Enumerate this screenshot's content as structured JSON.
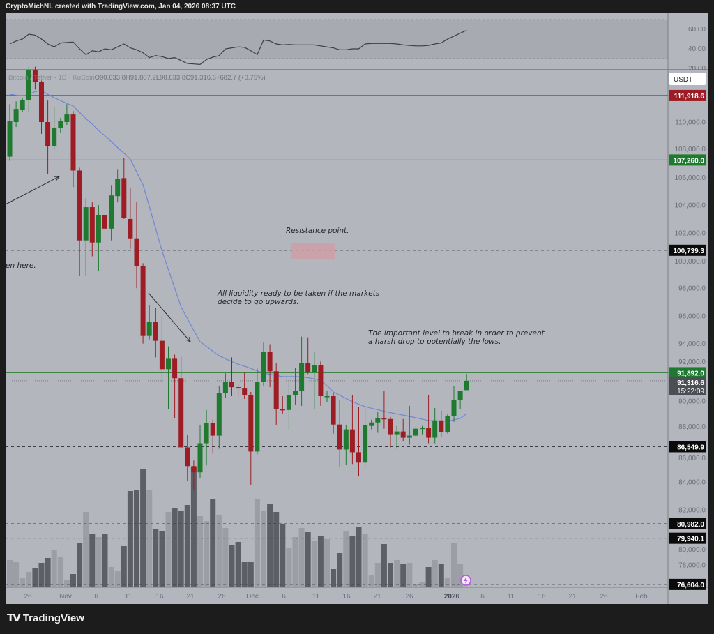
{
  "header": {
    "attribution": "CryptoMichNL created with TradingView.com, Jan 04, 2026 08:37 UTC"
  },
  "legend": {
    "symbol": "Bitcoin / Tether",
    "interval": "1D",
    "exchange": "KuCoin",
    "open": "O90,633.8",
    "high": "H91,807.2",
    "low": "L90,633.8",
    "close": "C91,316.6",
    "change": "+682.7 (+0.75%)"
  },
  "footer": {
    "brand": "TradingView",
    "logo_text": "TV"
  },
  "chart_data": {
    "type": "candlestick",
    "title": "",
    "x_tick_labels": [
      "26",
      "Nov",
      "6",
      "11",
      "16",
      "21",
      "26",
      "Dec",
      "6",
      "11",
      "16",
      "21",
      "26",
      "2026",
      "6",
      "11",
      "16",
      "21",
      "26",
      "Feb"
    ],
    "y_axis": {
      "currency": "USDT",
      "range": [
        76500,
        113780
      ],
      "ticks": [
        110000,
        108000,
        106000,
        104000,
        102000,
        100000,
        98000,
        96000,
        94000,
        92000,
        90000,
        88000,
        86000,
        84000,
        82000,
        80000,
        78000
      ],
      "tick_labels": [
        "110,000.0",
        "108,000.0",
        "106,000.0",
        "104,000.0",
        "102,000.0",
        "100,000.0",
        "98,000.0",
        "96,000.0",
        "94,000.0",
        "92,000.0",
        "90,000.0",
        "88,000.0",
        "86,000.0",
        "84,000.0",
        "82,000.0",
        "80,000.0",
        "78,000.0"
      ]
    },
    "candles": [
      [
        107500,
        111300,
        107200,
        110050
      ],
      [
        110000,
        111500,
        109650,
        110950
      ],
      [
        110900,
        111750,
        110750,
        111600
      ],
      [
        111600,
        114000,
        110750,
        113780
      ],
      [
        113780,
        114000,
        112350,
        112870
      ],
      [
        112870,
        113000,
        109150,
        110000
      ],
      [
        110000,
        111550,
        106250,
        108250
      ],
      [
        108250,
        111100,
        108000,
        109600
      ],
      [
        109550,
        110300,
        109250,
        110050
      ],
      [
        110000,
        111300,
        109800,
        110550
      ],
      [
        110550,
        110800,
        105300,
        106500
      ],
      [
        106500,
        106700,
        98900,
        101450
      ],
      [
        101450,
        104500,
        98900,
        103850
      ],
      [
        103850,
        104200,
        100300,
        101300
      ],
      [
        101300,
        104000,
        99250,
        103300
      ],
      [
        103300,
        103500,
        101450,
        102300
      ],
      [
        102300,
        105450,
        101450,
        104700
      ],
      [
        104650,
        106550,
        104200,
        105900
      ],
      [
        105950,
        107400,
        103000,
        103050
      ],
      [
        103000,
        105250,
        100850,
        101600
      ],
      [
        101600,
        104200,
        98000,
        99600
      ],
      [
        99600,
        99800,
        94000,
        94550
      ],
      [
        94550,
        96750,
        94300,
        95550
      ],
      [
        95550,
        96550,
        93000,
        94200
      ],
      [
        94200,
        96000,
        91250,
        92150
      ],
      [
        92150,
        93800,
        89250,
        92900
      ],
      [
        92900,
        93200,
        88600,
        91500
      ],
      [
        91500,
        93050,
        86500,
        86500
      ],
      [
        86500,
        87400,
        84050,
        85150
      ],
      [
        85150,
        85550,
        83450,
        84700
      ],
      [
        84700,
        88100,
        84300,
        86800
      ],
      [
        86800,
        89200,
        85200,
        88250
      ],
      [
        88250,
        88500,
        86050,
        87350
      ],
      [
        87350,
        90950,
        86400,
        90450
      ],
      [
        90450,
        91850,
        90100,
        91250
      ],
      [
        91250,
        93000,
        90200,
        90850
      ],
      [
        90850,
        91100,
        90150,
        90750
      ],
      [
        90750,
        91900,
        90000,
        90300
      ],
      [
        90300,
        90500,
        83800,
        86200
      ],
      [
        86200,
        92200,
        86000,
        91250
      ],
      [
        91250,
        94100,
        90900,
        93400
      ],
      [
        93400,
        93950,
        90850,
        92000
      ],
      [
        92000,
        92600,
        88100,
        89250
      ],
      [
        89250,
        90200,
        88950,
        89200
      ],
      [
        89200,
        91200,
        87750,
        90300
      ],
      [
        90300,
        92250,
        89600,
        90600
      ],
      [
        90600,
        94500,
        89500,
        92600
      ],
      [
        92600,
        94450,
        91800,
        91950
      ],
      [
        91950,
        93400,
        89250,
        92450
      ],
      [
        92450,
        92700,
        89500,
        90200
      ],
      [
        90200,
        90600,
        89750,
        90200
      ],
      [
        90200,
        90400,
        87500,
        88150
      ],
      [
        88150,
        89950,
        85100,
        86350
      ],
      [
        86350,
        88100,
        85250,
        87800
      ],
      [
        87800,
        90250,
        85300,
        86150
      ],
      [
        86150,
        89400,
        84400,
        85400
      ],
      [
        85400,
        89350,
        85100,
        88100
      ],
      [
        88050,
        88500,
        87800,
        88300
      ],
      [
        88300,
        89050,
        87550,
        88600
      ],
      [
        88600,
        90550,
        87850,
        88550
      ],
      [
        88550,
        88700,
        86500,
        87450
      ],
      [
        87450,
        88050,
        86400,
        87650
      ],
      [
        87650,
        88550,
        86950,
        87200
      ],
      [
        87200,
        89500,
        86700,
        87350
      ],
      [
        87350,
        88000,
        87250,
        87850
      ],
      [
        87850,
        88050,
        87450,
        87900
      ],
      [
        87900,
        90300,
        86800,
        87200
      ],
      [
        87200,
        89350,
        86800,
        88450
      ],
      [
        88450,
        89150,
        87250,
        87600
      ],
      [
        87600,
        88900,
        87500,
        88750
      ],
      [
        88750,
        90950,
        88350,
        89950
      ],
      [
        89950,
        90600,
        89250,
        90600
      ],
      [
        90633.8,
        91807.2,
        90633.8,
        91316.6
      ]
    ],
    "volume_relative": [
      39,
      36,
      13,
      22,
      28,
      35,
      42,
      53,
      43,
      11,
      19,
      63,
      108,
      77,
      72,
      77,
      29,
      24,
      59,
      138,
      139,
      170,
      139,
      84,
      81,
      108,
      113,
      110,
      118,
      172,
      102,
      95,
      126,
      104,
      85,
      61,
      65,
      36,
      36,
      126,
      110,
      120,
      108,
      91,
      56,
      72,
      85,
      79,
      67,
      74,
      69,
      26,
      49,
      80,
      73,
      87,
      76,
      18,
      35,
      62,
      35,
      39,
      33,
      35,
      5,
      8,
      29,
      39,
      33,
      14,
      63,
      34,
      0
    ],
    "moving_average": [
      112000,
      111950,
      111900,
      112000,
      112200,
      112270,
      112000,
      111760,
      111550,
      111350,
      111160,
      110700,
      110250,
      109850,
      109400,
      109000,
      108600,
      108150,
      107750,
      107330,
      106400,
      105470,
      103900,
      102300,
      100680,
      99350,
      98000,
      96650,
      95800,
      94950,
      94130,
      93800,
      93450,
      93120,
      92900,
      92700,
      92500,
      92370,
      92200,
      92030,
      91860,
      91780,
      91700,
      91610,
      91610,
      91610,
      91610,
      91530,
      91450,
      91360,
      90950,
      90500,
      90270,
      90030,
      89800,
      89620,
      89450,
      89330,
      89220,
      89100,
      89010,
      88920,
      88830,
      88740,
      88640,
      88540,
      88440,
      88420,
      88400,
      88390,
      88490,
      88590,
      88940
    ],
    "rsi": {
      "range": [
        20,
        77
      ],
      "bands": [
        70,
        30
      ],
      "ticks": [
        60,
        40,
        20
      ],
      "tick_labels": [
        "60.00",
        "40.00",
        "20.00"
      ],
      "values": [
        45,
        48,
        50,
        55,
        54,
        50,
        45,
        42,
        46,
        46.5,
        47,
        40,
        34,
        38,
        37,
        40,
        39,
        42,
        45,
        41,
        39,
        36,
        31,
        33,
        32,
        30,
        31,
        28,
        25,
        24.5,
        24,
        29,
        31.5,
        33,
        40,
        41,
        42,
        41.5,
        38,
        34,
        49,
        48,
        45,
        44,
        44.5,
        44,
        44,
        44,
        44,
        43,
        42,
        41,
        39,
        39,
        40,
        40,
        45,
        45.5,
        45.5,
        45.5,
        45.5,
        45,
        44,
        43.5,
        43,
        43,
        43.5,
        45,
        46,
        50,
        53,
        56,
        59
      ]
    },
    "horizontal_levels": [
      {
        "value": 111918.6,
        "label": "111,918.6",
        "style": "solid",
        "line_color": "#9b2a30",
        "tag_color": "#9c1b24"
      },
      {
        "value": 107260.0,
        "label": "107,260.0",
        "style": "solid",
        "line_color": "#5d6168",
        "tag_color": "#1f7a30"
      },
      {
        "value": 100739.3,
        "label": "100,739.3",
        "style": "dashed",
        "line_color": "#3a3d44",
        "tag_color": "#0b0b0b"
      },
      {
        "value": 91892.0,
        "label": "91,892.0",
        "style": "solid",
        "line_color": "#2e7d32",
        "tag_color": "#1f7a30"
      },
      {
        "value": 86549.9,
        "label": "86,549.9",
        "style": "dashed",
        "line_color": "#3a3d44",
        "tag_color": "#0b0b0b"
      },
      {
        "value": 80982.0,
        "label": "80,982.0",
        "style": "dashed",
        "line_color": "#3a3d44",
        "tag_color": "#0b0b0b"
      },
      {
        "value": 79940.1,
        "label": "79,940.1",
        "style": "dashed",
        "line_color": "#3a3d44",
        "tag_color": "#0b0b0b"
      },
      {
        "value": 76604.0,
        "label": "76,604.0",
        "style": "dashed",
        "line_color": "#3a3d44",
        "tag_color": "#0b0b0b"
      }
    ],
    "last_price": {
      "value": 91316.6,
      "label": "91,316.6",
      "countdown": "15:22:09"
    },
    "annotations": [
      {
        "lines": [
          "Resistance point."
        ]
      },
      {
        "lines": [
          "All liquidity ready to be taken if the markets",
          "decide to go upwards."
        ]
      },
      {
        "lines": [
          "The important level to break in order to prevent",
          "a harsh drop to potentially the lows."
        ]
      },
      {
        "lines": [
          "en here."
        ]
      }
    ],
    "colors": {
      "up": "#1f7a30",
      "down": "#9e1c24",
      "moving_average": "#6f86d6",
      "rsi_line": "#3c3f46",
      "background": "#b3b6bc",
      "volume_up": "#9b9ea5",
      "volume_down": "#5c5f66",
      "resistance_zone": "#cf9ea4"
    }
  }
}
